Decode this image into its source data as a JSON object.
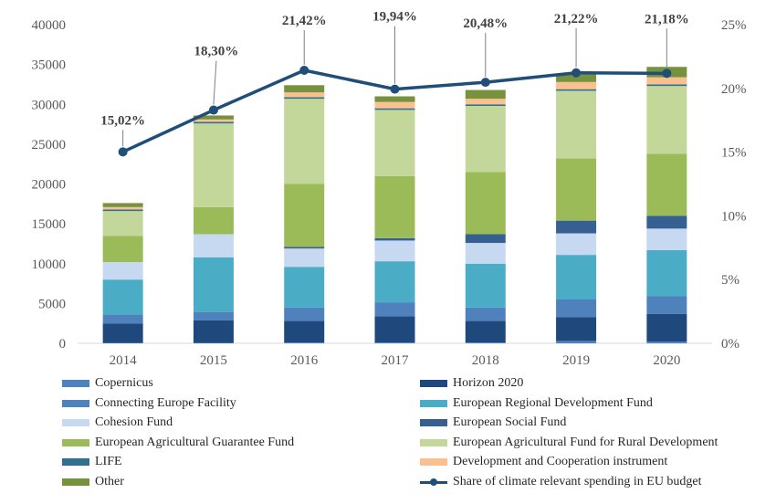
{
  "chart_data": {
    "type": "bar",
    "stacked": true,
    "categories": [
      "2014",
      "2015",
      "2016",
      "2017",
      "2018",
      "2019",
      "2020"
    ],
    "ylim": [
      0,
      40000
    ],
    "y_ticks": [
      "0",
      "5000",
      "10000",
      "15000",
      "20000",
      "25000",
      "30000",
      "35000",
      "40000"
    ],
    "y2lim": [
      0,
      25
    ],
    "y2_ticks": [
      "0%",
      "5%",
      "10%",
      "15%",
      "20%",
      "25%"
    ],
    "grid": false,
    "legend_position": "bottom",
    "series": [
      {
        "name": "Copernicus",
        "color": "#4f81bd",
        "values": [
          50,
          50,
          100,
          100,
          100,
          300,
          200
        ]
      },
      {
        "name": "Horizon 2020",
        "color": "#1f497d",
        "values": [
          2450,
          2850,
          2700,
          3300,
          2700,
          3000,
          3500
        ]
      },
      {
        "name": "Connecting Europe Facility",
        "color": "#4f81bd",
        "values": [
          1100,
          1000,
          1700,
          1700,
          1700,
          2200,
          2200
        ]
      },
      {
        "name": "European Regional Development Fund",
        "color": "#4bacc6",
        "values": [
          4400,
          6900,
          5100,
          5200,
          5500,
          5600,
          5800
        ]
      },
      {
        "name": "Cohesion Fund",
        "color": "#c6d9f1",
        "values": [
          2200,
          2900,
          2300,
          2600,
          2600,
          2700,
          2700
        ]
      },
      {
        "name": "European Social Fund",
        "color": "#366092",
        "values": [
          0,
          0,
          200,
          300,
          1100,
          1600,
          1600
        ]
      },
      {
        "name": "European Agricultural Guarantee Fund",
        "color": "#9bbb59",
        "values": [
          3300,
          3400,
          7900,
          7800,
          7800,
          7800,
          7800
        ]
      },
      {
        "name": "European Agricultural Fund for Rural Development",
        "color": "#c4d79b",
        "values": [
          3100,
          10500,
          10700,
          8300,
          8300,
          8500,
          8500
        ]
      },
      {
        "name": "LIFE",
        "color": "#31708f",
        "values": [
          200,
          200,
          200,
          200,
          200,
          200,
          200
        ]
      },
      {
        "name": "Development and Cooperation instrument",
        "color": "#fac090",
        "values": [
          300,
          300,
          600,
          800,
          700,
          900,
          900
        ]
      },
      {
        "name": "Other",
        "color": "#76923c",
        "values": [
          500,
          500,
          900,
          700,
          1100,
          1000,
          1300
        ]
      }
    ],
    "line_series": {
      "name": "Share of climate relevant spending in EU budget",
      "color": "#1f4e79",
      "axis": "right",
      "values": [
        15.02,
        18.3,
        21.42,
        19.94,
        20.48,
        21.22,
        21.18
      ],
      "labels": [
        "15,02%",
        "18,30%",
        "21,42%",
        "19,94%",
        "20,48%",
        "21,22%",
        "21,18%"
      ]
    }
  },
  "legend": {
    "items": [
      {
        "label": "Copernicus",
        "color": "#4f81bd",
        "kind": "box"
      },
      {
        "label": "Horizon 2020",
        "color": "#1f497d",
        "kind": "box"
      },
      {
        "label": "Connecting Europe Facility",
        "color": "#4f81bd",
        "kind": "box"
      },
      {
        "label": "European Regional Development Fund",
        "color": "#4bacc6",
        "kind": "box"
      },
      {
        "label": "Cohesion Fund",
        "color": "#c6d9f1",
        "kind": "box"
      },
      {
        "label": "European Social Fund",
        "color": "#366092",
        "kind": "box"
      },
      {
        "label": "European Agricultural Guarantee Fund",
        "color": "#9bbb59",
        "kind": "box"
      },
      {
        "label": "European Agricultural Fund for Rural Development",
        "color": "#c4d79b",
        "kind": "box"
      },
      {
        "label": "LIFE",
        "color": "#31708f",
        "kind": "box"
      },
      {
        "label": "Development and Cooperation instrument",
        "color": "#fac090",
        "kind": "box"
      },
      {
        "label": "Other",
        "color": "#76923c",
        "kind": "box"
      },
      {
        "label": "Share of climate relevant spending in EU budget",
        "color": "#1f4e79",
        "kind": "line"
      }
    ]
  }
}
